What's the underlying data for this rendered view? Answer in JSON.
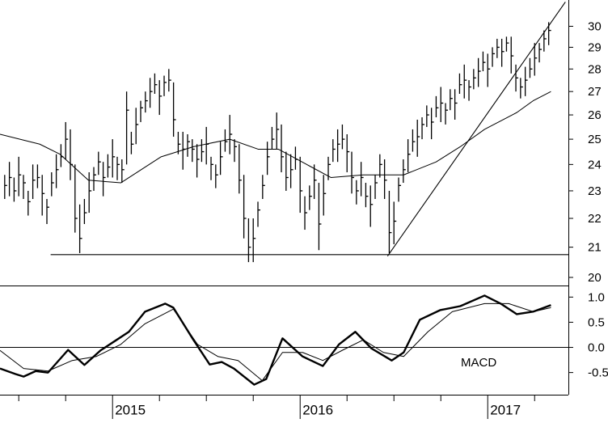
{
  "chart_data": [
    {
      "type": "hlc",
      "log_scale": true,
      "color": "#000000",
      "xlim": [
        2014.4,
        2017.43
      ],
      "ylim": [
        19.74,
        31.3
      ],
      "yticks": [
        20,
        21,
        22,
        23,
        24,
        25,
        26,
        27,
        28,
        29,
        30
      ],
      "x": [
        2014.425,
        2014.45,
        2014.475,
        2014.5,
        2014.525,
        2014.55,
        2014.575,
        2014.6,
        2014.625,
        2014.65,
        2014.675,
        2014.7,
        2014.725,
        2014.75,
        2014.775,
        2014.8,
        2014.825,
        2014.85,
        2014.875,
        2014.9,
        2014.925,
        2014.95,
        2014.975,
        2015,
        2015.025,
        2015.05,
        2015.075,
        2015.1,
        2015.125,
        2015.15,
        2015.175,
        2015.2,
        2015.225,
        2015.25,
        2015.275,
        2015.3,
        2015.325,
        2015.35,
        2015.375,
        2015.4,
        2015.425,
        2015.45,
        2015.475,
        2015.5,
        2015.525,
        2015.55,
        2015.575,
        2015.6,
        2015.625,
        2015.65,
        2015.675,
        2015.7,
        2015.725,
        2015.75,
        2015.775,
        2015.8,
        2015.825,
        2015.85,
        2015.875,
        2015.9,
        2015.925,
        2015.95,
        2015.975,
        2016,
        2016.025,
        2016.05,
        2016.075,
        2016.1,
        2016.125,
        2016.15,
        2016.175,
        2016.2,
        2016.225,
        2016.25,
        2016.275,
        2016.3,
        2016.325,
        2016.35,
        2016.375,
        2016.4,
        2016.425,
        2016.45,
        2016.475,
        2016.5,
        2016.525,
        2016.55,
        2016.575,
        2016.6,
        2016.625,
        2016.65,
        2016.675,
        2016.7,
        2016.725,
        2016.75,
        2016.775,
        2016.8,
        2016.825,
        2016.85,
        2016.875,
        2016.9,
        2016.925,
        2016.95,
        2016.975,
        2017,
        2017.025,
        2017.05,
        2017.075,
        2017.1,
        2017.125,
        2017.15,
        2017.175,
        2017.2,
        2017.225,
        2017.25,
        2017.275,
        2017.3,
        2017.325
      ],
      "high": [
        23.6,
        24.1,
        23.5,
        24.3,
        23.6,
        23.0,
        24.0,
        24.0,
        23.6,
        22.7,
        23.7,
        24.4,
        24.8,
        25.7,
        25.4,
        24.0,
        22.5,
        22.7,
        23.7,
        23.9,
        24.5,
        24.1,
        24.4,
        25.0,
        24.3,
        24.2,
        27.0,
        25.3,
        26.3,
        26.6,
        27.0,
        27.6,
        27.8,
        27.5,
        27.7,
        28.0,
        27.4,
        25.3,
        25.3,
        25.2,
        25.0,
        24.8,
        25.0,
        25.5,
        24.3,
        24.0,
        24.9,
        25.4,
        26.0,
        25.0,
        24.8,
        23.6,
        22.0,
        22.0,
        22.6,
        23.6,
        24.9,
        25.5,
        26.1,
        25.6,
        24.5,
        24.4,
        24.7,
        24.3,
        22.8,
        23.2,
        24.0,
        23.3,
        23.6,
        24.3,
        25.0,
        25.4,
        25.6,
        25.2,
        24.5,
        23.4,
        24.1,
        23.3,
        23.2,
        23.6,
        24.4,
        24.2,
        23.0,
        22.6,
        23.5,
        24.2,
        25.0,
        25.4,
        25.8,
        25.9,
        26.4,
        26.3,
        26.8,
        27.2,
        26.5,
        27.1,
        27.1,
        27.8,
        28.2,
        27.5,
        28.0,
        28.5,
        28.8,
        28.7,
        29.0,
        29.4,
        29.4,
        29.5,
        29.5,
        28.2,
        27.6,
        28.1,
        28.5,
        29.2,
        29.2,
        29.8,
        30.2
      ],
      "low": [
        22.7,
        22.8,
        22.6,
        22.8,
        22.7,
        22.1,
        22.7,
        23.1,
        22.1,
        21.8,
        22.8,
        23.1,
        23.9,
        24.2,
        23.4,
        21.5,
        20.8,
        21.8,
        22.2,
        23.0,
        23.6,
        22.8,
        23.5,
        23.5,
        23.4,
        23.3,
        24.0,
        24.4,
        24.8,
        25.7,
        26.1,
        26.3,
        26.9,
        26.0,
        26.8,
        27.0,
        25.1,
        24.4,
        23.8,
        24.3,
        24.1,
        23.5,
        24.1,
        24.0,
        23.4,
        23.1,
        23.6,
        24.5,
        24.4,
        24.1,
        22.9,
        21.3,
        20.5,
        20.5,
        21.7,
        22.7,
        23.6,
        24.6,
        24.6,
        23.7,
        23.0,
        23.1,
        23.8,
        22.2,
        21.6,
        22.3,
        22.7,
        20.9,
        22.1,
        23.4,
        24.1,
        24.1,
        24.6,
        23.7,
        22.9,
        22.5,
        22.8,
        22.4,
        21.7,
        22.7,
        23.5,
        22.7,
        20.8,
        21.1,
        22.6,
        23.3,
        23.7,
        24.5,
        24.3,
        25.0,
        25.5,
        25.0,
        25.9,
        25.7,
        25.6,
        26.2,
        25.8,
        26.9,
        26.7,
        26.6,
        27.1,
        27.2,
        27.9,
        27.2,
        28.1,
        28.5,
        28.1,
        28.8,
        27.8,
        27.0,
        26.7,
        26.8,
        27.6,
        27.7,
        28.3,
        28.8,
        29.1
      ],
      "close": [
        23.2,
        23.5,
        23.0,
        23.6,
        23.3,
        22.6,
        23.4,
        23.5,
        22.9,
        22.4,
        23.3,
        23.8,
        24.3,
        25.0,
        24.0,
        22.0,
        21.3,
        22.2,
        23.0,
        23.6,
        24.1,
        23.5,
        23.9,
        24.3,
        24.0,
        23.8,
        26.2,
        24.8,
        25.6,
        26.3,
        26.6,
        27.0,
        27.3,
        26.8,
        27.4,
        27.5,
        25.8,
        24.8,
        24.6,
        24.9,
        24.6,
        24.2,
        24.5,
        24.8,
        24.0,
        23.6,
        24.3,
        24.9,
        25.2,
        24.7,
        23.4,
        22.0,
        21.0,
        21.3,
        22.3,
        23.2,
        24.3,
        25.0,
        25.4,
        24.3,
        23.5,
        23.8,
        24.2,
        23.0,
        22.2,
        22.8,
        23.4,
        21.8,
        22.9,
        24.0,
        24.6,
        24.8,
        25.0,
        24.5,
        23.5,
        23.0,
        23.5,
        22.8,
        22.5,
        23.3,
        24.0,
        23.4,
        21.5,
        21.9,
        23.2,
        23.8,
        24.4,
        24.9,
        25.1,
        25.6,
        26.0,
        25.7,
        26.3,
        26.5,
        26.2,
        26.7,
        26.5,
        27.3,
        27.5,
        27.2,
        27.6,
        27.9,
        28.3,
        28.0,
        28.7,
        29.0,
        28.8,
        29.2,
        28.6,
        27.6,
        27.2,
        27.5,
        28.0,
        28.5,
        28.9,
        29.4,
        29.8
      ],
      "moving_average": {
        "x": [
          2014.4,
          2014.612,
          2014.72,
          2014.871,
          2015.044,
          2015.259,
          2015.431,
          2015.625,
          2015.776,
          2015.884,
          2016.035,
          2016.164,
          2016.337,
          2016.552,
          2016.725,
          2016.854,
          2016.983,
          2017.155,
          2017.242,
          2017.337
        ],
        "values": [
          25.2,
          24.8,
          24.4,
          23.4,
          23.3,
          24.3,
          24.7,
          25.0,
          24.6,
          24.6,
          24.0,
          23.5,
          23.6,
          23.6,
          24.1,
          24.7,
          25.4,
          26.1,
          26.6,
          27.0
        ]
      },
      "lines": [
        {
          "x": [
            2014.67,
            2017.43
          ],
          "values": [
            20.75,
            20.75
          ]
        },
        {
          "x": [
            2016.466,
            2017.414
          ],
          "values": [
            20.7,
            31.2
          ]
        }
      ]
    },
    {
      "type": "line",
      "annotation": "MACD",
      "xlim": [
        2014.4,
        2017.43
      ],
      "ylim": [
        -0.94,
        1.23
      ],
      "yticks": [
        -0.5,
        {
          "value": 0,
          "label": "0.0"
        },
        0.5,
        {
          "value": 1,
          "label": "1.0"
        }
      ],
      "zero_line": 0,
      "xticks": [
        2015,
        2016,
        2017
      ],
      "xticks_minor": [
        2014.5,
        2014.75,
        2015.25,
        2015.5,
        2015.75,
        2016.25,
        2016.5,
        2016.75,
        2017.25
      ],
      "series": [
        {
          "color": "#000000",
          "line_width": 2.4,
          "x": [
            2014.4,
            2014.483,
            2014.526,
            2014.591,
            2014.656,
            2014.763,
            2014.85,
            2014.936,
            2015.022,
            2015.087,
            2015.173,
            2015.281,
            2015.324,
            2015.431,
            2015.518,
            2015.582,
            2015.647,
            2015.755,
            2015.819,
            2015.906,
            2016.013,
            2016.121,
            2016.207,
            2016.294,
            2016.38,
            2016.488,
            2016.552,
            2016.638,
            2016.746,
            2016.854,
            2016.983,
            2017.069,
            2017.155,
            2017.242,
            2017.337
          ],
          "values": [
            -0.42,
            -0.53,
            -0.58,
            -0.47,
            -0.5,
            -0.05,
            -0.35,
            -0.06,
            0.15,
            0.31,
            0.71,
            0.87,
            0.79,
            0.15,
            -0.34,
            -0.29,
            -0.42,
            -0.74,
            -0.63,
            0.18,
            -0.18,
            -0.37,
            0.06,
            0.31,
            -0.02,
            -0.26,
            -0.1,
            0.55,
            0.74,
            0.82,
            1.03,
            0.87,
            0.66,
            0.71,
            0.84
          ]
        },
        {
          "color": "#000000",
          "line_width": 1,
          "x": [
            2014.4,
            2014.526,
            2014.656,
            2014.785,
            2014.914,
            2015.044,
            2015.173,
            2015.324,
            2015.453,
            2015.561,
            2015.669,
            2015.798,
            2015.906,
            2016.013,
            2016.121,
            2016.229,
            2016.337,
            2016.444,
            2016.552,
            2016.681,
            2016.811,
            2016.983,
            2017.112,
            2017.242,
            2017.337
          ],
          "values": [
            -0.06,
            -0.42,
            -0.47,
            -0.26,
            -0.18,
            0.06,
            0.47,
            0.76,
            0.06,
            -0.18,
            -0.26,
            -0.66,
            -0.1,
            -0.1,
            -0.26,
            -0.05,
            0.15,
            -0.1,
            -0.18,
            0.31,
            0.71,
            0.87,
            0.87,
            0.71,
            0.79
          ]
        }
      ]
    }
  ]
}
